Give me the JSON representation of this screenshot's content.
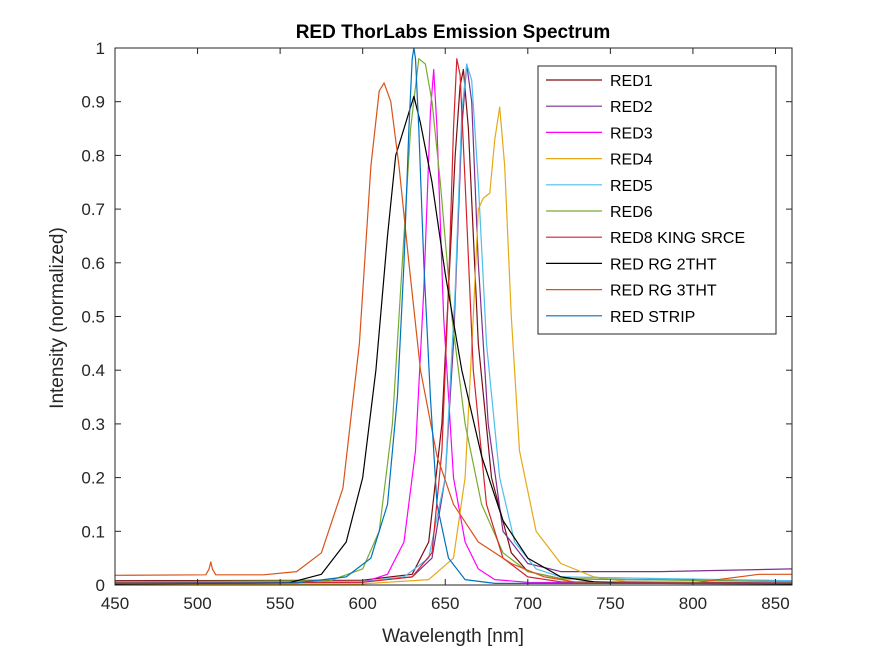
{
  "chart_data": {
    "type": "line",
    "title": "RED ThorLabs Emission Spectrum",
    "xlabel": "Wavelength [nm]",
    "ylabel": "Intensity (normalized)",
    "xlim": [
      450,
      860
    ],
    "ylim": [
      0,
      1
    ],
    "xticks": [
      450,
      500,
      550,
      600,
      650,
      700,
      750,
      800,
      850
    ],
    "yticks": [
      0,
      0.1,
      0.2,
      0.3,
      0.4,
      0.5,
      0.6,
      0.7,
      0.8,
      0.9,
      1
    ],
    "ytick_labels": [
      "0",
      "0.1",
      "0.2",
      "0.3",
      "0.4",
      "0.5",
      "0.6",
      "0.7",
      "0.8",
      "0.9",
      "1"
    ],
    "grid": false,
    "legend_position": "top-right",
    "series": [
      {
        "name": "RED1",
        "color": "#7a0e12",
        "x": [
          450,
          600,
          630,
          640,
          648,
          652,
          656,
          659,
          661,
          664,
          670,
          678,
          690,
          700,
          720,
          760,
          860
        ],
        "y": [
          0.008,
          0.009,
          0.02,
          0.08,
          0.3,
          0.55,
          0.8,
          0.93,
          0.96,
          0.85,
          0.45,
          0.2,
          0.06,
          0.025,
          0.012,
          0.01,
          0.008
        ]
      },
      {
        "name": "RED2",
        "color": "#7e2f8e",
        "x": [
          450,
          600,
          630,
          642,
          650,
          655,
          660,
          663,
          666,
          670,
          676,
          685,
          700,
          720,
          780,
          860
        ],
        "y": [
          0.005,
          0.006,
          0.015,
          0.05,
          0.2,
          0.45,
          0.85,
          0.97,
          0.9,
          0.6,
          0.3,
          0.1,
          0.04,
          0.025,
          0.025,
          0.03
        ]
      },
      {
        "name": "RED3",
        "color": "#ff00ff",
        "x": [
          450,
          600,
          615,
          625,
          632,
          637,
          641,
          643,
          645,
          649,
          655,
          662,
          670,
          680,
          700,
          860
        ],
        "y": [
          0.003,
          0.005,
          0.02,
          0.08,
          0.25,
          0.55,
          0.88,
          0.96,
          0.85,
          0.5,
          0.2,
          0.08,
          0.03,
          0.01,
          0.005,
          0.003
        ]
      },
      {
        "name": "RED4",
        "color": "#e6a817",
        "x": [
          450,
          600,
          640,
          655,
          662,
          667,
          670,
          673,
          677,
          680,
          683,
          686,
          690,
          695,
          705,
          720,
          740,
          760,
          860
        ],
        "y": [
          0.002,
          0.002,
          0.01,
          0.05,
          0.2,
          0.5,
          0.7,
          0.72,
          0.73,
          0.83,
          0.89,
          0.78,
          0.5,
          0.25,
          0.1,
          0.04,
          0.015,
          0.006,
          0.003
        ]
      },
      {
        "name": "RED5",
        "color": "#4dbeee",
        "x": [
          450,
          600,
          625,
          640,
          650,
          656,
          660,
          663,
          666,
          670,
          675,
          683,
          692,
          705,
          720,
          860
        ],
        "y": [
          0.005,
          0.006,
          0.015,
          0.05,
          0.2,
          0.55,
          0.88,
          0.97,
          0.94,
          0.75,
          0.45,
          0.2,
          0.08,
          0.03,
          0.015,
          0.008
        ]
      },
      {
        "name": "RED6",
        "color": "#77ac30",
        "x": [
          450,
          580,
          600,
          610,
          618,
          624,
          629,
          634,
          638,
          642,
          647,
          654,
          662,
          672,
          685,
          700,
          720,
          860
        ],
        "y": [
          0.006,
          0.008,
          0.03,
          0.1,
          0.3,
          0.6,
          0.85,
          0.98,
          0.97,
          0.9,
          0.75,
          0.5,
          0.3,
          0.15,
          0.06,
          0.025,
          0.012,
          0.006
        ]
      },
      {
        "name": "RED8 KING SRCE",
        "color": "#d4222b",
        "x": [
          450,
          600,
          630,
          642,
          648,
          652,
          655,
          657,
          659,
          662,
          667,
          675,
          685,
          700,
          720,
          860
        ],
        "y": [
          0.004,
          0.005,
          0.015,
          0.06,
          0.25,
          0.55,
          0.85,
          0.98,
          0.95,
          0.75,
          0.4,
          0.15,
          0.05,
          0.015,
          0.006,
          0.004
        ]
      },
      {
        "name": "RED RG 2THT",
        "color": "#000000",
        "x": [
          450,
          555,
          575,
          590,
          600,
          608,
          615,
          620,
          625,
          628,
          631,
          635,
          642,
          650,
          660,
          672,
          685,
          700,
          720,
          740,
          760,
          780,
          860
        ],
        "y": [
          0.002,
          0.004,
          0.02,
          0.08,
          0.2,
          0.4,
          0.65,
          0.8,
          0.85,
          0.88,
          0.91,
          0.86,
          0.75,
          0.58,
          0.4,
          0.24,
          0.12,
          0.05,
          0.015,
          0.006,
          0.003,
          0.003,
          0.002
        ]
      },
      {
        "name": "RED RG 3THT",
        "color": "#d95319",
        "x": [
          450,
          505,
          507,
          508,
          509,
          511,
          540,
          560,
          575,
          588,
          598,
          605,
          610,
          613,
          617,
          622,
          628,
          635,
          645,
          655,
          670,
          690,
          710,
          730,
          760,
          800,
          840,
          860
        ],
        "y": [
          0.018,
          0.019,
          0.03,
          0.043,
          0.03,
          0.019,
          0.019,
          0.025,
          0.06,
          0.18,
          0.45,
          0.78,
          0.92,
          0.935,
          0.9,
          0.78,
          0.6,
          0.4,
          0.24,
          0.15,
          0.08,
          0.04,
          0.015,
          0.005,
          0.003,
          0.004,
          0.02,
          0.02
        ]
      },
      {
        "name": "RED STRIP",
        "color": "#0072bd",
        "x": [
          450,
          560,
          590,
          605,
          615,
          621,
          625,
          628,
          630,
          631,
          632,
          634,
          637,
          641,
          645,
          652,
          662,
          680,
          860
        ],
        "y": [
          0.003,
          0.004,
          0.015,
          0.05,
          0.15,
          0.35,
          0.6,
          0.85,
          0.98,
          1.0,
          0.98,
          0.85,
          0.6,
          0.35,
          0.15,
          0.05,
          0.01,
          0.003,
          0.003
        ]
      }
    ]
  }
}
